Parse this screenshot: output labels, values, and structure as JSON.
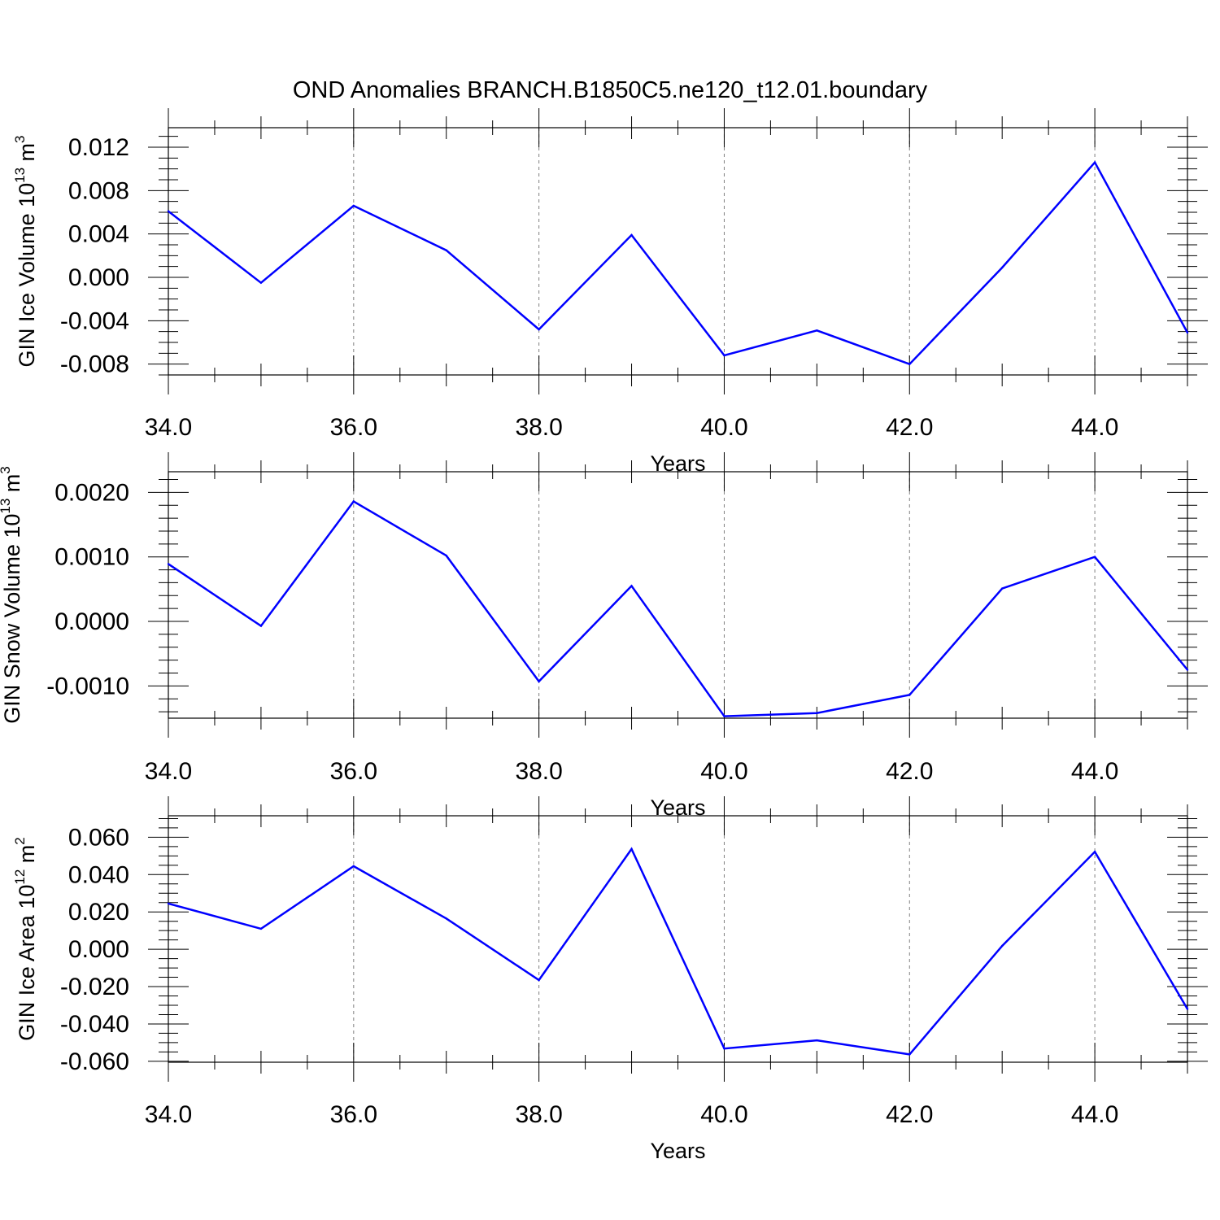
{
  "figure": {
    "title": "OND Anomalies BRANCH.B1850C5.ne120_t12.01.boundary",
    "line_color": "#0000ff",
    "axis_color": "#000000",
    "grid_color": "#808080"
  },
  "chart_data": [
    {
      "type": "line",
      "ylabel": {
        "text": "GIN Ice Volume 10",
        "exp": "13",
        "unit": " m",
        "unit_exp": "3"
      },
      "xlabel": "Years",
      "xlim": [
        34,
        45
      ],
      "ylim": [
        -0.009,
        0.0138
      ],
      "xticks": [
        34,
        36,
        38,
        40,
        42,
        44
      ],
      "xtick_labels": [
        "34.0",
        "36.0",
        "38.0",
        "40.0",
        "42.0",
        "44.0"
      ],
      "yticks": [
        0.012,
        0.008,
        0.004,
        0.0,
        -0.004,
        -0.008
      ],
      "ytick_labels": [
        "0.012",
        "0.008",
        "0.004",
        "0.000",
        "-0.004",
        "-0.008"
      ],
      "yminor_step": 0.001,
      "x": [
        34,
        35,
        36,
        37,
        38,
        39,
        40,
        41,
        42,
        43,
        44,
        45
      ],
      "y": [
        0.0061,
        -0.0005,
        0.0066,
        0.0025,
        -0.0048,
        0.0039,
        -0.0072,
        -0.0049,
        -0.008,
        0.0009,
        0.0106,
        -0.0051
      ]
    },
    {
      "type": "line",
      "ylabel": {
        "text": "GIN Snow Volume 10",
        "exp": "13",
        "unit": " m",
        "unit_exp": "3"
      },
      "xlabel": "Years",
      "xlim": [
        34,
        45
      ],
      "ylim": [
        -0.0015,
        0.00232
      ],
      "xticks": [
        34,
        36,
        38,
        40,
        42,
        44
      ],
      "xtick_labels": [
        "34.0",
        "36.0",
        "38.0",
        "40.0",
        "42.0",
        "44.0"
      ],
      "yticks": [
        0.002,
        0.001,
        0.0,
        -0.001
      ],
      "ytick_labels": [
        "0.0020",
        "0.0010",
        "0.0000",
        "-0.0010"
      ],
      "yminor_step": 0.0002,
      "x": [
        34,
        35,
        36,
        37,
        38,
        39,
        40,
        41,
        42,
        43,
        44,
        45
      ],
      "y": [
        0.00089,
        -7e-05,
        0.00186,
        0.00102,
        -0.00093,
        0.00055,
        -0.00147,
        -0.00142,
        -0.00114,
        0.00051,
        0.001,
        -0.00075
      ]
    },
    {
      "type": "line",
      "ylabel": {
        "text": "GIN Ice Area 10",
        "exp": "12",
        "unit": " m",
        "unit_exp": "2"
      },
      "xlabel": "Years",
      "xlim": [
        34,
        45
      ],
      "ylim": [
        -0.0605,
        0.0715
      ],
      "xticks": [
        34,
        36,
        38,
        40,
        42,
        44
      ],
      "xtick_labels": [
        "34.0",
        "36.0",
        "38.0",
        "40.0",
        "42.0",
        "44.0"
      ],
      "yticks": [
        0.06,
        0.04,
        0.02,
        0.0,
        -0.02,
        -0.04,
        -0.06
      ],
      "ytick_labels": [
        "0.060",
        "0.040",
        "0.020",
        "0.000",
        "-0.020",
        "-0.040",
        "-0.060"
      ],
      "yminor_step": 0.005,
      "x": [
        34,
        35,
        36,
        37,
        38,
        39,
        40,
        41,
        42,
        43,
        44,
        45
      ],
      "y": [
        0.0245,
        0.011,
        0.0445,
        0.0165,
        -0.0165,
        0.0537,
        -0.0532,
        -0.0488,
        -0.0563,
        0.0018,
        0.0522,
        -0.032
      ]
    }
  ]
}
